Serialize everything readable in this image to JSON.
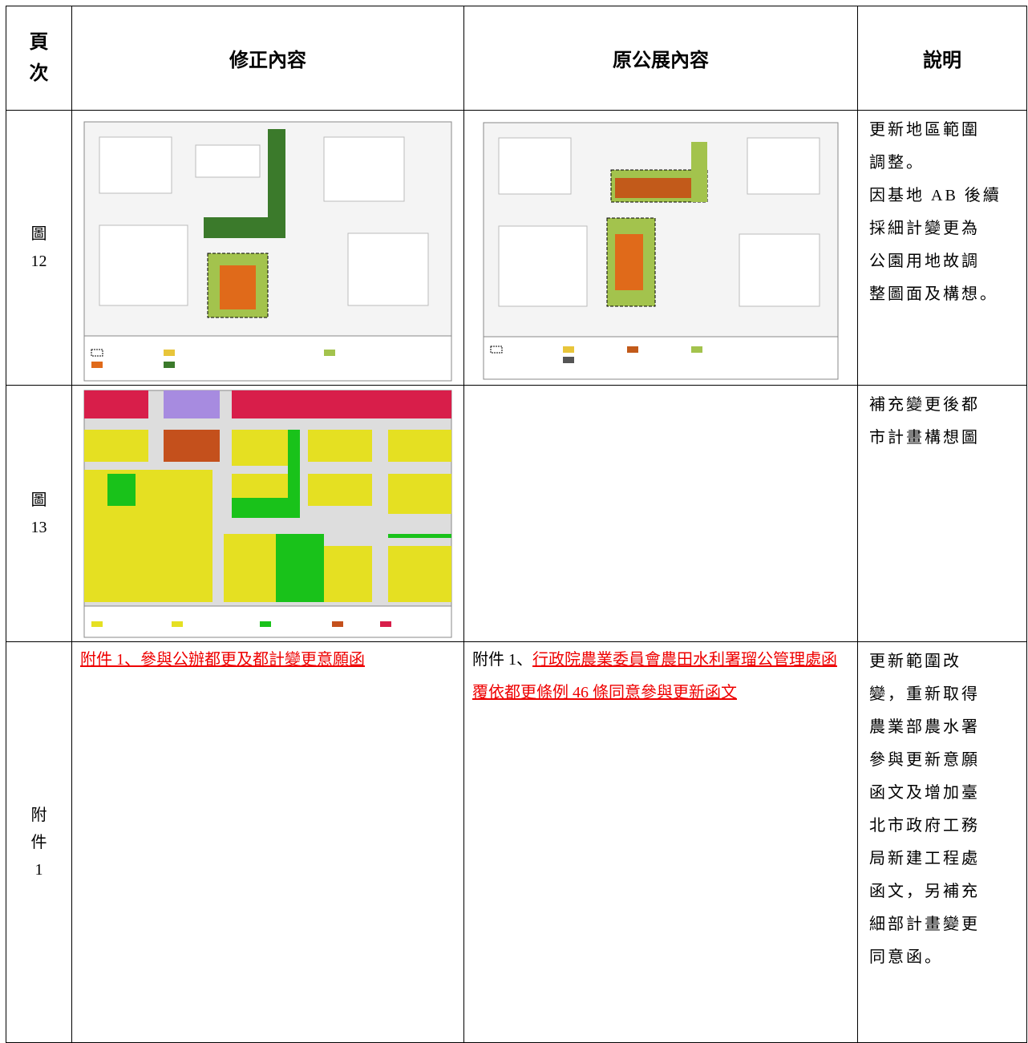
{
  "table": {
    "header": [
      "頁\n次",
      "修正內容",
      "原公展內容",
      "說明"
    ],
    "rows": [
      {
        "page": "圖\n12",
        "note": [
          "更新地區範圍",
          "調整。",
          "因基地 AB 後續",
          "採細計變更為",
          "公園用地故調",
          "整圖面及構想。"
        ]
      },
      {
        "page": "圖\n13",
        "note": [
          "補充變更後都",
          "市計畫構想圖"
        ]
      },
      {
        "page": "附\n件\n1",
        "revised": "附件 1、參與公辦都更及都計變更意願函",
        "original_prefix": "附件 1、",
        "original_link": "行政院農業委員會農田水利署瑠公管理處函覆依都更條例 46 條同意參與更新函文",
        "note": [
          "更新範圍改",
          "變，重新取得",
          "農業部農水署",
          "參與更新意願",
          "函文及增加臺",
          "北市政府工務",
          "局新建工程處",
          "函文，另補充",
          "細部計畫變更",
          "同意函。"
        ]
      }
    ]
  }
}
